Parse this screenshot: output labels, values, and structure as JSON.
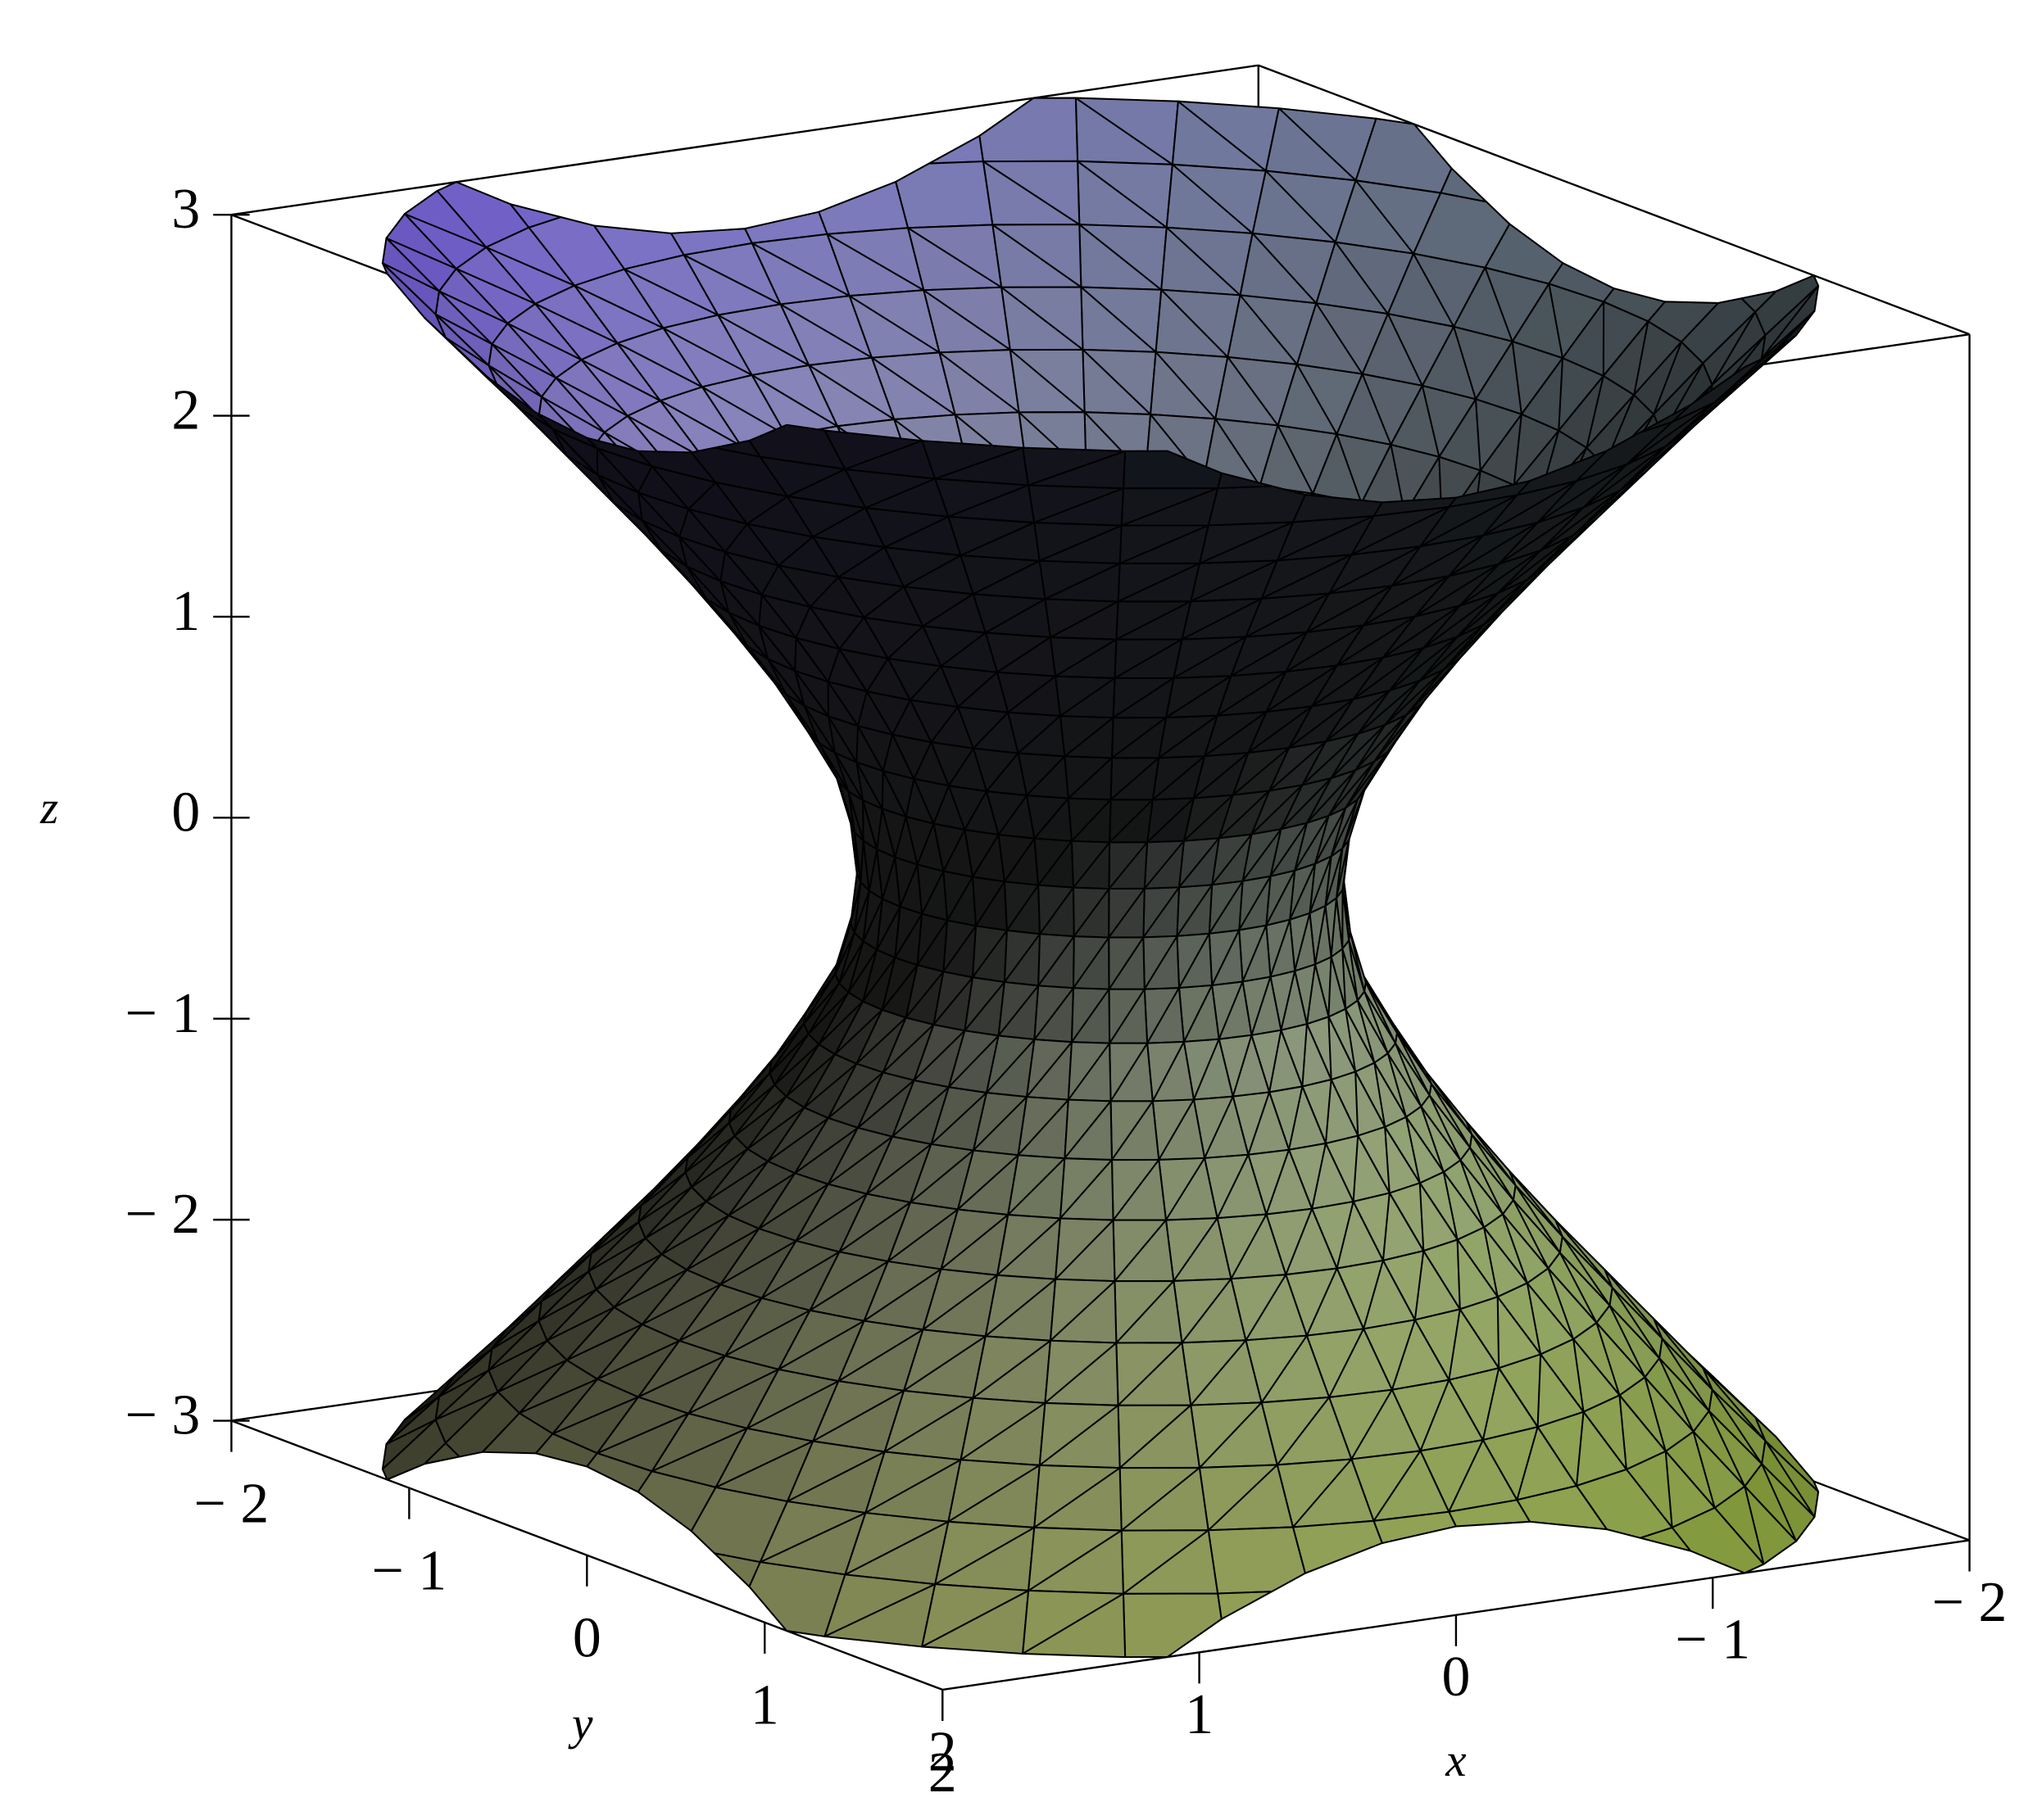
{
  "chart_data": {
    "type": "surface3d",
    "xlabel": "x",
    "ylabel": "y",
    "zlabel": "z",
    "xlim": [
      -2,
      2
    ],
    "ylim": [
      -2,
      2
    ],
    "zlim": [
      -3,
      3
    ],
    "xticks": [
      {
        "value": -2,
        "label": "− 2"
      },
      {
        "value": -1,
        "label": "− 1"
      },
      0,
      1,
      2
    ],
    "yticks": [
      {
        "value": -2,
        "label": "− 2"
      },
      {
        "value": -1,
        "label": "− 1"
      },
      0,
      1,
      2
    ],
    "zticks": [
      {
        "value": -3,
        "label": "− 3"
      },
      {
        "value": -2,
        "label": "− 2"
      },
      {
        "value": -1,
        "label": "− 1"
      },
      0,
      1,
      2,
      3
    ],
    "surface": {
      "z": [
        -3,
        -2.75,
        -2.5,
        -2.25,
        -2,
        -1.75,
        -1.5,
        -1.25,
        -1,
        -0.75,
        -0.5,
        -0.25,
        0,
        0.25,
        0.5,
        0.75,
        1,
        1.25,
        1.5,
        1.75,
        2,
        2.25,
        2.5,
        2.75,
        3
      ],
      "radius": [
        2.3,
        2.13,
        1.96,
        1.8,
        1.64,
        1.48,
        1.33,
        1.19,
        1.06,
        0.95,
        0.85,
        0.8,
        0.78,
        0.8,
        0.85,
        0.95,
        1.06,
        1.19,
        1.33,
        1.48,
        1.64,
        1.8,
        1.96,
        2.13,
        2.3
      ]
    },
    "colors": [
      "#6b4fd8",
      "#d0f8f8",
      "#ffffb8",
      "#7d9a2c"
    ]
  }
}
